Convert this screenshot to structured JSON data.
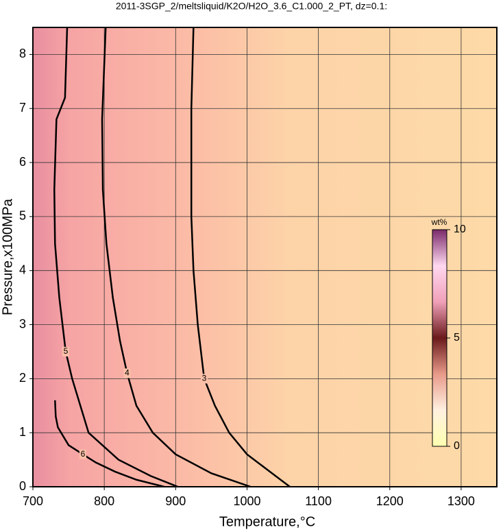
{
  "chart_data": {
    "type": "contour",
    "title": "2011-3SGP_2/meltsliquid/K2O/H2O_3.6_C1.000_2_PT, dz=0.1:",
    "x_label": "Temperature,°C",
    "y_label": "Pressure,x100MPa",
    "xlim": [
      700,
      1350
    ],
    "ylim": [
      0,
      8.5
    ],
    "xticks": [
      700,
      800,
      900,
      1000,
      1100,
      1200,
      1300
    ],
    "yticks": [
      0,
      1,
      2,
      3,
      4,
      5,
      6,
      7,
      8
    ],
    "grid": true,
    "line_color": "#000000",
    "contours": [
      {
        "level": 3,
        "x": [
          925,
          922,
          922,
          925,
          931,
          940,
          955,
          975,
          1000,
          1030,
          1060
        ],
        "y": [
          8.5,
          7,
          5,
          4,
          3,
          2,
          1.5,
          1,
          0.6,
          0.3,
          0
        ]
      },
      {
        "level": 4,
        "x": [
          802,
          797,
          798,
          803,
          812,
          822,
          832,
          845,
          868,
          900,
          950,
          1005
        ],
        "y": [
          8.5,
          6.8,
          5.5,
          4.5,
          3.5,
          2.7,
          2.1,
          1.5,
          1,
          0.6,
          0.25,
          0
        ]
      },
      {
        "level": 5,
        "x": [
          748,
          745,
          733,
          730,
          731,
          737,
          746,
          755,
          778,
          820,
          865,
          903
        ],
        "y": [
          8.5,
          7.2,
          6.8,
          5.5,
          4.5,
          3.5,
          2.5,
          2,
          1,
          0.5,
          0.2,
          0
        ]
      },
      {
        "level": 6,
        "x": [
          731,
          732,
          735,
          750,
          770,
          788,
          815,
          845,
          884
        ],
        "y": [
          1.6,
          1.3,
          1.1,
          0.77,
          0.6,
          0.45,
          0.28,
          0.13,
          0
        ]
      }
    ],
    "colorbar": {
      "label": "wt%",
      "lim": [
        0,
        10
      ],
      "ticks": [
        0,
        5,
        10
      ],
      "colors": [
        "#ffffb0",
        "#fff0e0",
        "#e89a8a",
        "#6a1a1a",
        "#f0a0b8",
        "#ffd8f0",
        "#7a2a6a"
      ]
    }
  }
}
